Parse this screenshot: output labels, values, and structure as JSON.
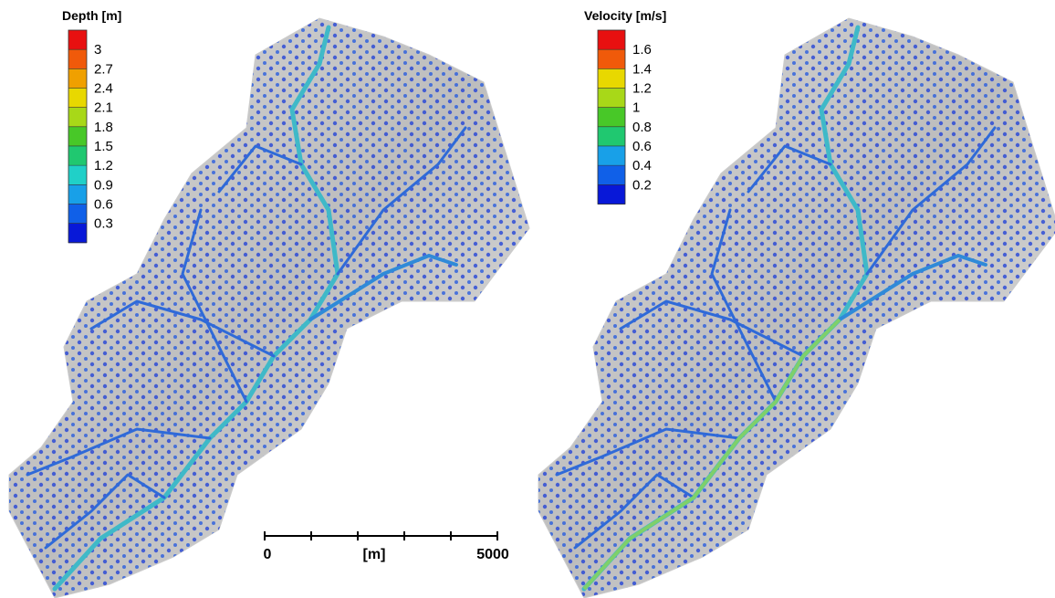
{
  "panels": [
    {
      "legend": {
        "title": "Depth [m]",
        "labels": [
          3,
          2.7,
          2.4,
          2.1,
          1.8,
          1.5,
          1.2,
          0.9,
          0.6,
          0.3
        ]
      }
    },
    {
      "legend": {
        "title": "Velocity [m/s]",
        "labels": [
          1.6,
          1.4,
          1.2,
          1,
          0.8,
          0.6,
          0.4,
          0.2
        ]
      }
    }
  ],
  "scale_bar": {
    "start": 0,
    "unit": "[m]",
    "end": 5000
  }
}
